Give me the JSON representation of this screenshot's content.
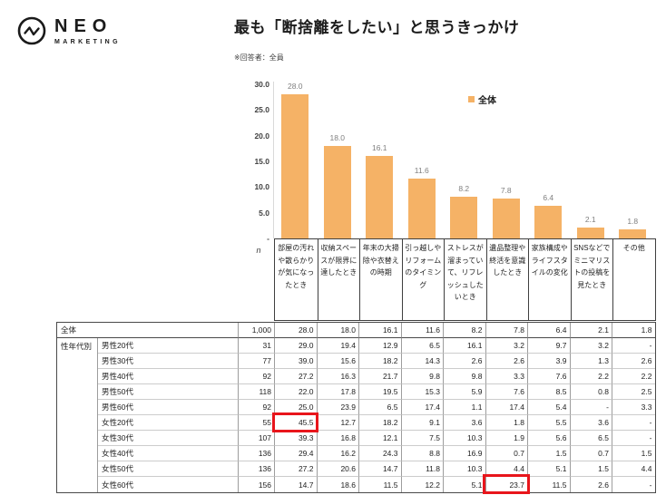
{
  "logo": {
    "name": "NEO",
    "sub": "MARKETING"
  },
  "header": {
    "title": "最も「断捨離をしたい」と思うきっかけ",
    "note": "※回答者：全員"
  },
  "chart_data": {
    "type": "bar",
    "title": "最も「断捨離をしたい」と思うきっかけ",
    "legend": [
      {
        "label": "全体",
        "color": "#F5B266"
      }
    ],
    "legend_position": "top-center",
    "grid": false,
    "bar_color": "#F5B266",
    "ylim": [
      0,
      30
    ],
    "ytick_labels": [
      "30.0",
      "25.0",
      "20.0",
      "15.0",
      "10.0",
      "5.0",
      "-"
    ],
    "categories": [
      "部屋の汚れや散らかりが気になったとき",
      "収納スペースが限界に達したとき",
      "年末の大掃除や衣替えの時期",
      "引っ越しやリフォームのタイミング",
      "ストレスが溜まっていて、リフレッシュしたいとき",
      "遺品整理や終活を意識したとき",
      "家族構成やライフスタイルの変化",
      "SNSなどでミニマリストの投稿を見たとき",
      "その他"
    ],
    "values": [
      28.0,
      18.0,
      16.1,
      11.6,
      8.2,
      7.8,
      6.4,
      2.1,
      1.8
    ],
    "value_labels": [
      "28.0",
      "18.0",
      "16.1",
      "11.6",
      "8.2",
      "7.8",
      "6.4",
      "2.1",
      "1.8"
    ]
  },
  "table": {
    "n_header": "n",
    "group_label": "性年代別",
    "overall": {
      "label": "全体",
      "n": "1,000",
      "values": [
        "28.0",
        "18.0",
        "16.1",
        "11.6",
        "8.2",
        "7.8",
        "6.4",
        "2.1",
        "1.8"
      ]
    },
    "rows": [
      {
        "label": "男性20代",
        "n": "31",
        "values": [
          "29.0",
          "19.4",
          "12.9",
          "6.5",
          "16.1",
          "3.2",
          "9.7",
          "3.2",
          "-"
        ]
      },
      {
        "label": "男性30代",
        "n": "77",
        "values": [
          "39.0",
          "15.6",
          "18.2",
          "14.3",
          "2.6",
          "2.6",
          "3.9",
          "1.3",
          "2.6"
        ]
      },
      {
        "label": "男性40代",
        "n": "92",
        "values": [
          "27.2",
          "16.3",
          "21.7",
          "9.8",
          "9.8",
          "3.3",
          "7.6",
          "2.2",
          "2.2"
        ]
      },
      {
        "label": "男性50代",
        "n": "118",
        "values": [
          "22.0",
          "17.8",
          "19.5",
          "15.3",
          "5.9",
          "7.6",
          "8.5",
          "0.8",
          "2.5"
        ]
      },
      {
        "label": "男性60代",
        "n": "92",
        "values": [
          "25.0",
          "23.9",
          "6.5",
          "17.4",
          "1.1",
          "17.4",
          "5.4",
          "-",
          "3.3"
        ]
      },
      {
        "label": "女性20代",
        "n": "55",
        "values": [
          "45.5",
          "12.7",
          "18.2",
          "9.1",
          "3.6",
          "1.8",
          "5.5",
          "3.6",
          "-"
        ]
      },
      {
        "label": "女性30代",
        "n": "107",
        "values": [
          "39.3",
          "16.8",
          "12.1",
          "7.5",
          "10.3",
          "1.9",
          "5.6",
          "6.5",
          "-"
        ]
      },
      {
        "label": "女性40代",
        "n": "136",
        "values": [
          "29.4",
          "16.2",
          "24.3",
          "8.8",
          "16.9",
          "0.7",
          "1.5",
          "0.7",
          "1.5"
        ]
      },
      {
        "label": "女性50代",
        "n": "136",
        "values": [
          "27.2",
          "20.6",
          "14.7",
          "11.8",
          "10.3",
          "4.4",
          "5.1",
          "1.5",
          "4.4"
        ]
      },
      {
        "label": "女性60代",
        "n": "156",
        "values": [
          "14.7",
          "18.6",
          "11.5",
          "12.2",
          "5.1",
          "23.7",
          "11.5",
          "2.6",
          "-"
        ]
      }
    ],
    "highlights": [
      {
        "row": 5,
        "col": 0,
        "value": "45.5",
        "color": "#E8151B"
      },
      {
        "row": 9,
        "col": 5,
        "value": "23.7",
        "color": "#E8151B"
      }
    ]
  }
}
